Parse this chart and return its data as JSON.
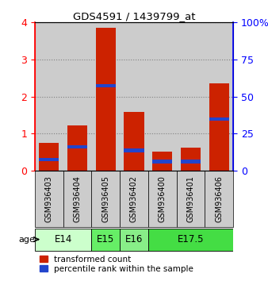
{
  "title": "GDS4591 / 1439799_at",
  "samples": [
    "GSM936403",
    "GSM936404",
    "GSM936405",
    "GSM936402",
    "GSM936400",
    "GSM936401",
    "GSM936406"
  ],
  "red_values": [
    0.75,
    1.22,
    3.85,
    1.58,
    0.52,
    0.62,
    2.35
  ],
  "blue_bottoms": [
    0.25,
    0.6,
    2.25,
    0.5,
    0.2,
    0.2,
    1.35
  ],
  "blue_heights": [
    0.1,
    0.09,
    0.09,
    0.09,
    0.09,
    0.09,
    0.09
  ],
  "ylim_left": [
    0,
    4
  ],
  "ylim_right": [
    0,
    100
  ],
  "yticks_left": [
    0,
    1,
    2,
    3,
    4
  ],
  "yticks_right": [
    0,
    25,
    50,
    75,
    100
  ],
  "age_groups": [
    {
      "label": "E14",
      "span": [
        0,
        2
      ],
      "color": "#ccffcc"
    },
    {
      "label": "E15",
      "span": [
        2,
        3
      ],
      "color": "#66ee66"
    },
    {
      "label": "E16",
      "span": [
        3,
        4
      ],
      "color": "#88ee88"
    },
    {
      "label": "E17.5",
      "span": [
        4,
        7
      ],
      "color": "#44dd44"
    }
  ],
  "bar_color": "#cc2200",
  "blue_color": "#2244cc",
  "sample_bg_color": "#cccccc",
  "label_age": "age",
  "legend_red": "transformed count",
  "legend_blue": "percentile rank within the sample"
}
